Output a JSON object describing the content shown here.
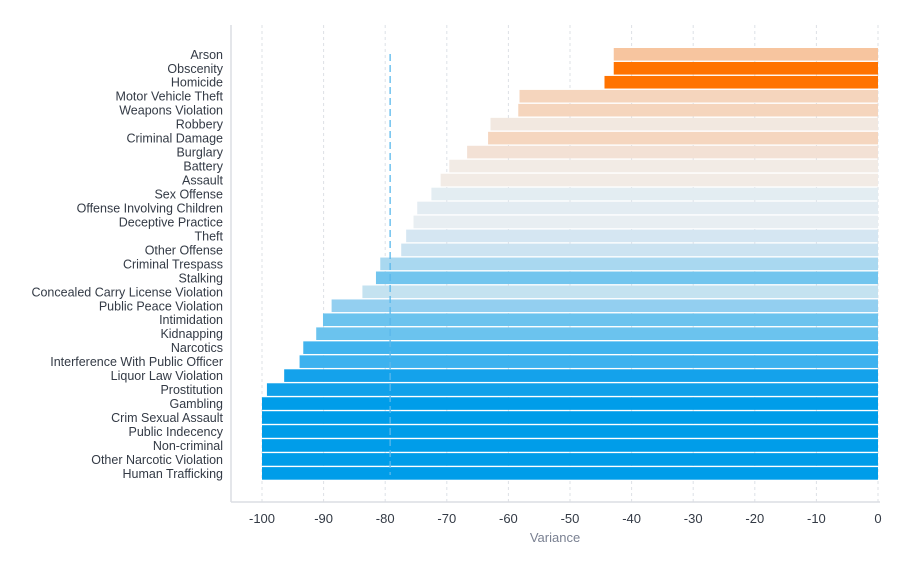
{
  "chart_data": {
    "type": "bar",
    "orientation": "horizontal",
    "title": "",
    "xlabel": "Variance",
    "ylabel": "",
    "xlim": [
      -105,
      0
    ],
    "xticks": [
      -100,
      -90,
      -80,
      -70,
      -60,
      -50,
      -40,
      -30,
      -20,
      -10,
      0
    ],
    "grid": {
      "vertical": true,
      "style": "dashed"
    },
    "reference_line": {
      "value": -79.2,
      "style": "dashed",
      "color": "#5ab8ec"
    },
    "categories": [
      "Arson",
      "Obscenity",
      "Homicide",
      "Motor Vehicle Theft",
      "Weapons Violation",
      "Robbery",
      "Criminal Damage",
      "Burglary",
      "Battery",
      "Assault",
      "Sex Offense",
      "Offense Involving Children",
      "Deceptive Practice",
      "Theft",
      "Other Offense",
      "Criminal Trespass",
      "Stalking",
      "Concealed Carry License Violation",
      "Public Peace Violation",
      "Intimidation",
      "Kidnapping",
      "Narcotics",
      "Interference With Public Officer",
      "Liquor Law Violation",
      "Prostitution",
      "Gambling",
      "Crim Sexual Assault",
      "Public Indecency",
      "Non-criminal",
      "Other Narcotic Violation",
      "Human Trafficking"
    ],
    "values": [
      -42.9,
      -42.9,
      -44.4,
      -58.2,
      -58.4,
      -62.9,
      -63.3,
      -66.7,
      -69.6,
      -71.0,
      -72.5,
      -74.8,
      -75.4,
      -76.6,
      -77.4,
      -80.8,
      -81.5,
      -83.7,
      -88.7,
      -90.1,
      -91.2,
      -93.3,
      -93.9,
      -96.4,
      -99.2,
      -100,
      -100,
      -100,
      -100,
      -100,
      -100
    ],
    "colors": [
      "#f7c59f",
      "#ff7300",
      "#ff7300",
      "#f5d5bd",
      "#f5d5bd",
      "#f2e8e0",
      "#f5d6bf",
      "#f3e1d5",
      "#f2ebe5",
      "#f2ebe5",
      "#e3edf2",
      "#e3ecf2",
      "#e8eef2",
      "#d5e6f2",
      "#cce3f1",
      "#a9d8f0",
      "#72c5ee",
      "#c4e2f0",
      "#93cff0",
      "#6bc3ee",
      "#6bc3ee",
      "#40b3ee",
      "#3db2ef",
      "#14a2eb",
      "#10a1ea",
      "#009de9",
      "#009de9",
      "#009de9",
      "#009de9",
      "#009de9",
      "#009de9"
    ]
  }
}
